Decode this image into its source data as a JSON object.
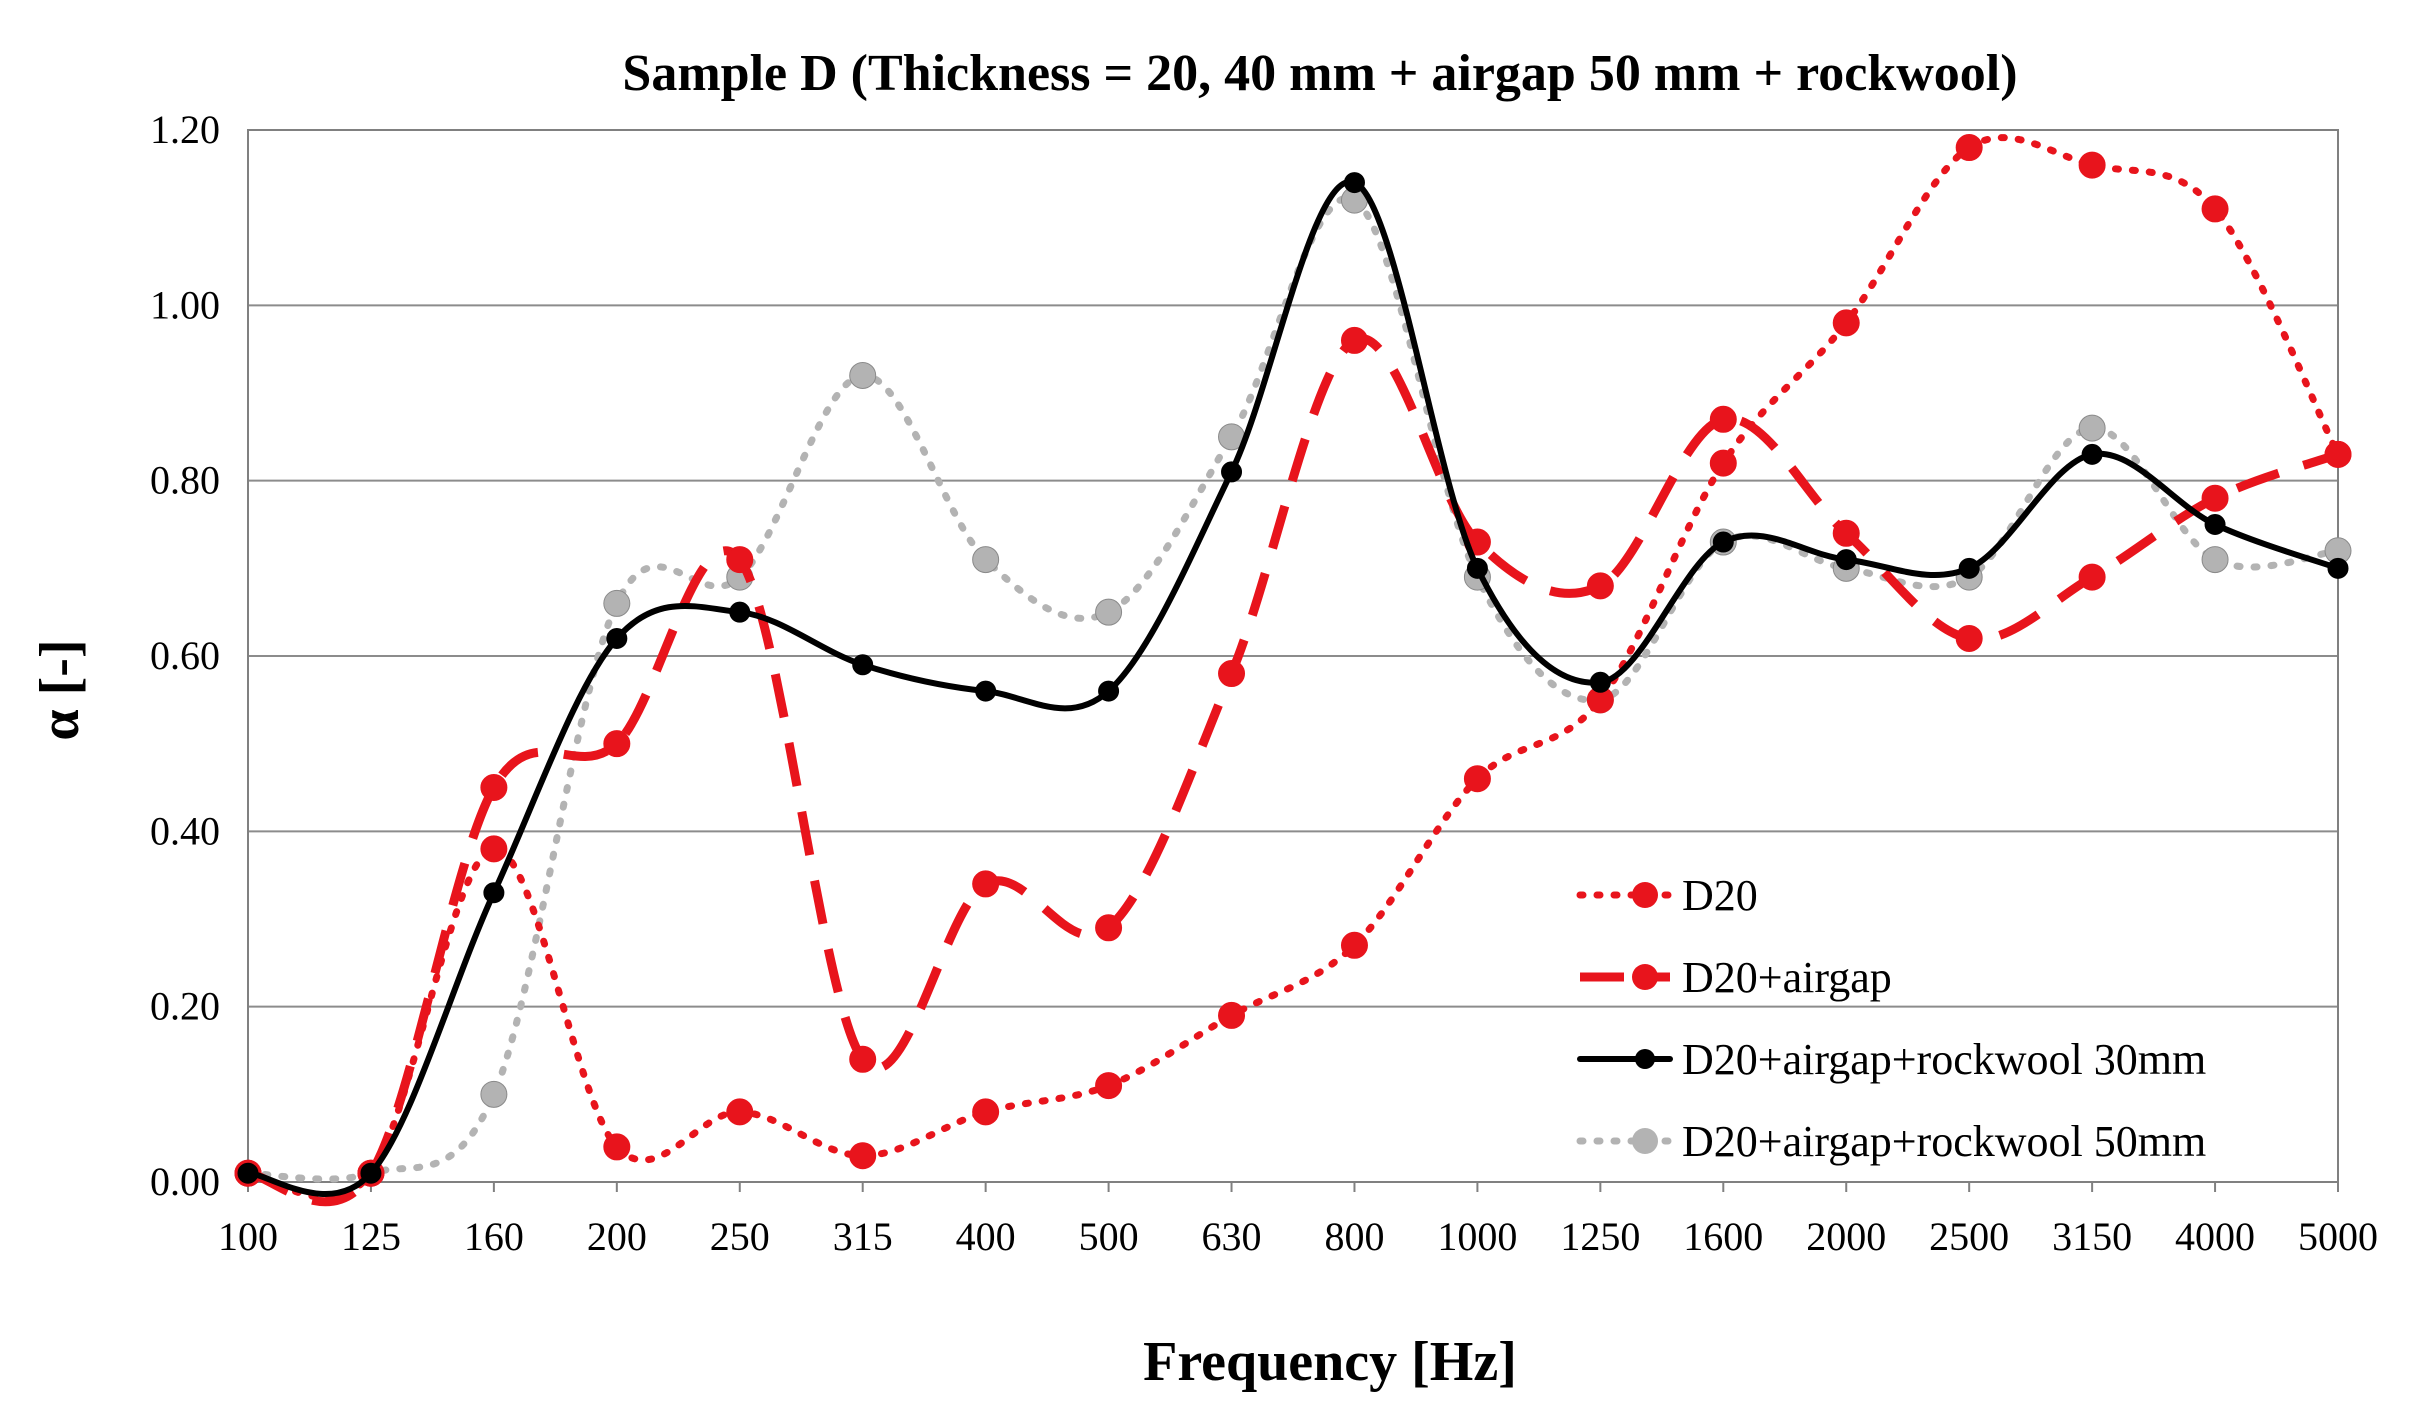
{
  "chart_data": {
    "type": "line",
    "title": "Sample D (Thickness = 20, 40 mm + airgap 50 mm + rockwool)",
    "xlabel": "Frequency [Hz]",
    "ylabel": "α [-]",
    "ylim": [
      0,
      1.2
    ],
    "yticks": [
      "0.00",
      "0.20",
      "0.40",
      "0.60",
      "0.80",
      "1.00",
      "1.20"
    ],
    "grid": "horizontal",
    "legend_position": "bottom-right",
    "categories": [
      "100",
      "125",
      "160",
      "200",
      "250",
      "315",
      "400",
      "500",
      "630",
      "800",
      "1000",
      "1250",
      "1600",
      "2000",
      "2500",
      "3150",
      "4000",
      "5000"
    ],
    "series": [
      {
        "name": "D20",
        "style": "dotted",
        "color": "#e8141c",
        "values": [
          0.01,
          0.01,
          0.38,
          0.04,
          0.08,
          0.03,
          0.08,
          0.11,
          0.19,
          0.27,
          0.46,
          0.55,
          0.82,
          0.98,
          1.18,
          1.16,
          1.11,
          0.83
        ]
      },
      {
        "name": "D20+airgap",
        "style": "dashed",
        "color": "#e8141c",
        "values": [
          0.01,
          0.01,
          0.45,
          0.5,
          0.71,
          0.14,
          0.34,
          0.29,
          0.58,
          0.96,
          0.73,
          0.68,
          0.87,
          0.74,
          0.62,
          0.69,
          0.78,
          0.83
        ]
      },
      {
        "name": "D20+airgap+rockwool 30mm",
        "style": "solid",
        "color": "#000000",
        "values": [
          0.01,
          0.01,
          0.33,
          0.62,
          0.65,
          0.59,
          0.56,
          0.56,
          0.81,
          1.14,
          0.7,
          0.57,
          0.73,
          0.71,
          0.7,
          0.83,
          0.75,
          0.7
        ]
      },
      {
        "name": "D20+airgap+rockwool 50mm",
        "style": "dotted",
        "color": "#b3b3b3",
        "values": [
          0.01,
          0.01,
          0.1,
          0.66,
          0.69,
          0.92,
          0.71,
          0.65,
          0.85,
          1.12,
          0.69,
          0.55,
          0.73,
          0.7,
          0.69,
          0.86,
          0.71,
          0.72
        ]
      }
    ]
  }
}
